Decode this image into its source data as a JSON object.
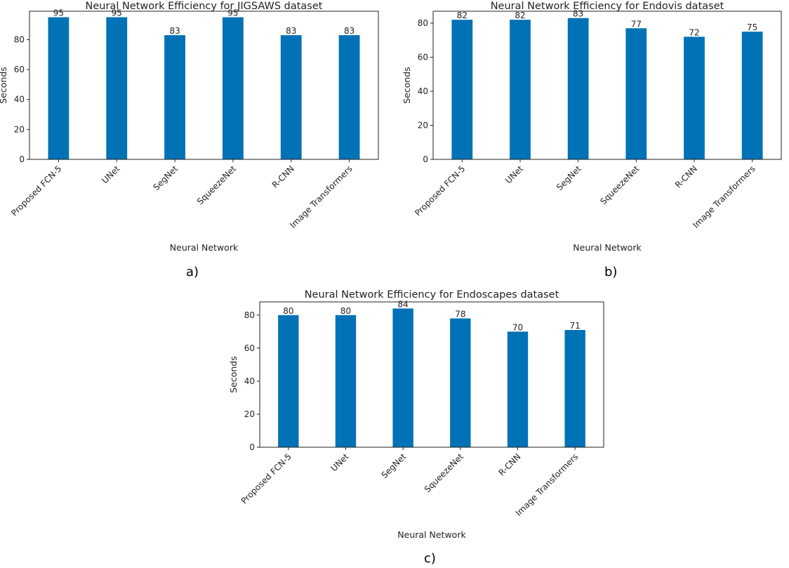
{
  "bar_color": "#0072b5",
  "chart_data": [
    {
      "type": "bar",
      "title": "Neural Network Efficiency for JIGSAWS dataset",
      "xlabel": "Neural Network",
      "ylabel": "Seconds",
      "categories": [
        "Proposed FCN-5",
        "UNet",
        "SegNet",
        "SqueezeNet",
        "R-CNN",
        "Image Transformers"
      ],
      "values": [
        95,
        95,
        83,
        95,
        83,
        83
      ],
      "ylim": [
        0,
        99
      ],
      "yticks": [
        0,
        20,
        40,
        60,
        80
      ],
      "caption": "a)"
    },
    {
      "type": "bar",
      "title": "Neural Network Efficiency for Endovis dataset",
      "xlabel": "Neural Network",
      "ylabel": "Seconds",
      "categories": [
        "Proposed FCN-5",
        "UNet",
        "SegNet",
        "SqueezeNet",
        "R-CNN",
        "Image Transformers"
      ],
      "values": [
        82,
        82,
        83,
        77,
        72,
        75
      ],
      "ylim": [
        0,
        87
      ],
      "yticks": [
        0,
        20,
        40,
        60,
        80
      ],
      "caption": "b)"
    },
    {
      "type": "bar",
      "title": "Neural Network Efficiency for Endoscapes dataset",
      "xlabel": "Neural Network",
      "ylabel": "Seconds",
      "categories": [
        "Proposed FCN-5",
        "UNet",
        "SegNet",
        "SqueezeNet",
        "R-CNN",
        "Image Transformers"
      ],
      "values": [
        80,
        80,
        84,
        78,
        70,
        71
      ],
      "ylim": [
        0,
        88
      ],
      "yticks": [
        0,
        20,
        40,
        60,
        80
      ],
      "caption": "c)"
    }
  ]
}
